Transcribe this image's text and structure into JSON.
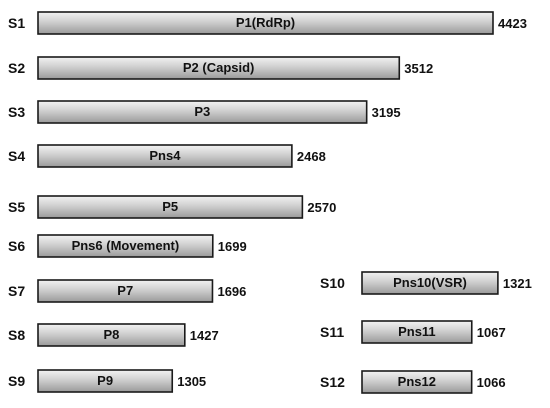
{
  "colors": {
    "bar_fill_top": "#f2f2f2",
    "bar_fill_mid": "#cfcfcf",
    "bar_fill_bottom": "#9a9a9a",
    "outline": "#1a1a1a",
    "text": "#111111"
  },
  "segments": [
    {
      "segment": "S1",
      "protein": "P1(RdRp)",
      "length": "4423",
      "length_bp": 4423
    },
    {
      "segment": "S2",
      "protein": "P2 (Capsid)",
      "length": "3512",
      "length_bp": 3512
    },
    {
      "segment": "S3",
      "protein": "P3",
      "length": "3195",
      "length_bp": 3195
    },
    {
      "segment": "S4",
      "protein": "Pns4",
      "length": "2468",
      "length_bp": 2468
    },
    {
      "segment": "S5",
      "protein": "P5",
      "length": "2570",
      "length_bp": 2570
    },
    {
      "segment": "S6",
      "protein": "Pns6 (Movement)",
      "length": "1699",
      "length_bp": 1699
    },
    {
      "segment": "S7",
      "protein": "P7",
      "length": "1696",
      "length_bp": 1696
    },
    {
      "segment": "S8",
      "protein": "P8",
      "length": "1427",
      "length_bp": 1427
    },
    {
      "segment": "S9",
      "protein": "P9",
      "length": "1305",
      "length_bp": 1305
    },
    {
      "segment": "S10",
      "protein": "Pns10(VSR)",
      "length": "1321",
      "length_bp": 1321
    },
    {
      "segment": "S11",
      "protein": "Pns11",
      "length": "1067",
      "length_bp": 1067
    },
    {
      "segment": "S12",
      "protein": "Pns12",
      "length": "1066",
      "length_bp": 1066
    }
  ]
}
